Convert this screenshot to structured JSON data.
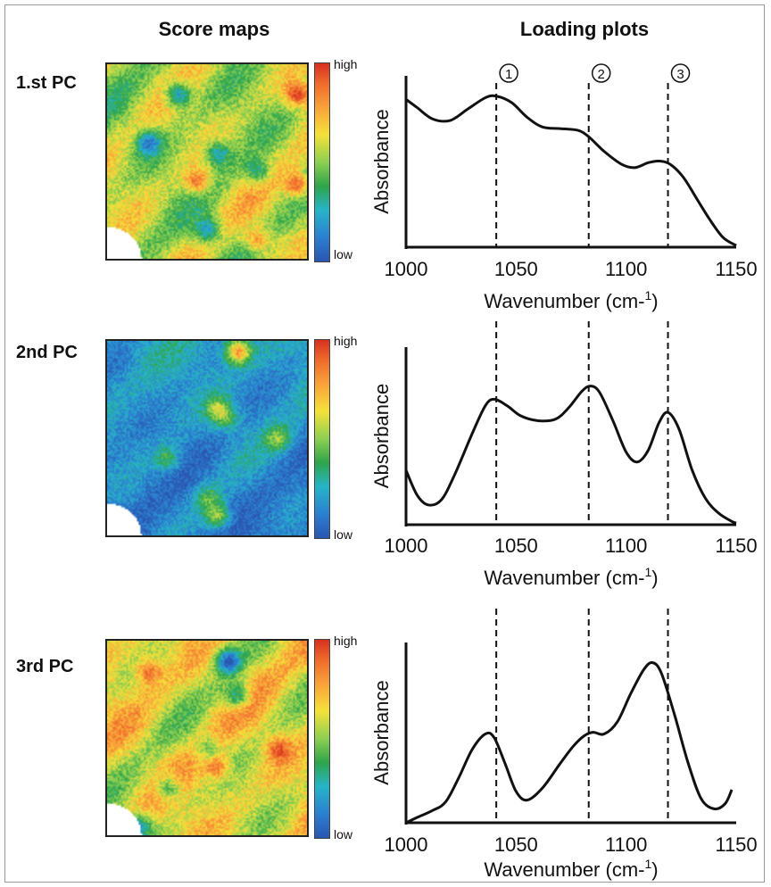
{
  "headers": {
    "score_maps": "Score maps",
    "loading_plots": "Loading plots"
  },
  "colorbar": {
    "high_label": "high",
    "low_label": "low"
  },
  "peak_markers": [
    {
      "number": "1",
      "symbol": "①",
      "wavenumber": 1041
    },
    {
      "number": "2",
      "symbol": "②",
      "wavenumber": 1083
    },
    {
      "number": "3",
      "symbol": "③",
      "wavenumber": 1119
    }
  ],
  "panels": [
    {
      "label": "1.st PC",
      "map_profile": "yellow-green with red streaks and blue spots"
    },
    {
      "label": "2nd PC",
      "map_profile": "predominantly blue with scattered yellow spots"
    },
    {
      "label": "3rd PC",
      "map_profile": "yellow-orange with green regions and blue spots"
    }
  ],
  "chart_data": [
    {
      "type": "line",
      "xlabel": "Wavenumber (cm-1)",
      "ylabel": "Absorbance",
      "xlim": [
        1000,
        1150
      ],
      "xticks": [
        1000,
        1050,
        1100,
        1150
      ],
      "y_tick_labels": false,
      "series": [
        {
          "points": [
            [
              1000,
              0.91
            ],
            [
              1005,
              0.86
            ],
            [
              1012,
              0.79
            ],
            [
              1020,
              0.78
            ],
            [
              1028,
              0.85
            ],
            [
              1036,
              0.92
            ],
            [
              1041,
              0.93
            ],
            [
              1048,
              0.89
            ],
            [
              1055,
              0.8
            ],
            [
              1062,
              0.74
            ],
            [
              1070,
              0.73
            ],
            [
              1078,
              0.72
            ],
            [
              1083,
              0.68
            ],
            [
              1090,
              0.59
            ],
            [
              1098,
              0.51
            ],
            [
              1104,
              0.49
            ],
            [
              1110,
              0.52
            ],
            [
              1115,
              0.53
            ],
            [
              1120,
              0.51
            ],
            [
              1126,
              0.43
            ],
            [
              1132,
              0.3
            ],
            [
              1138,
              0.17
            ],
            [
              1144,
              0.06
            ],
            [
              1150,
              0.01
            ]
          ]
        }
      ],
      "peak_lines": [
        1041,
        1083,
        1119
      ]
    },
    {
      "type": "line",
      "xlabel": "Wavenumber (cm-1)",
      "ylabel": "Absorbance",
      "xlim": [
        1000,
        1150
      ],
      "xticks": [
        1000,
        1050,
        1100,
        1150
      ],
      "y_tick_labels": false,
      "series": [
        {
          "points": [
            [
              1000,
              0.33
            ],
            [
              1005,
              0.18
            ],
            [
              1010,
              0.12
            ],
            [
              1016,
              0.15
            ],
            [
              1022,
              0.3
            ],
            [
              1030,
              0.55
            ],
            [
              1036,
              0.72
            ],
            [
              1040,
              0.76
            ],
            [
              1046,
              0.72
            ],
            [
              1052,
              0.66
            ],
            [
              1060,
              0.63
            ],
            [
              1068,
              0.64
            ],
            [
              1074,
              0.71
            ],
            [
              1080,
              0.81
            ],
            [
              1084,
              0.84
            ],
            [
              1088,
              0.8
            ],
            [
              1094,
              0.63
            ],
            [
              1100,
              0.44
            ],
            [
              1105,
              0.38
            ],
            [
              1110,
              0.45
            ],
            [
              1115,
              0.62
            ],
            [
              1119,
              0.68
            ],
            [
              1124,
              0.58
            ],
            [
              1130,
              0.33
            ],
            [
              1136,
              0.16
            ],
            [
              1142,
              0.07
            ],
            [
              1148,
              0.02
            ],
            [
              1150,
              0.01
            ]
          ]
        }
      ],
      "peak_lines": [
        1041,
        1083,
        1119
      ]
    },
    {
      "type": "line",
      "xlabel": "Wavenumber (cm-1)",
      "ylabel": "Absorbance",
      "xlim": [
        1000,
        1150
      ],
      "xticks": [
        1000,
        1050,
        1100,
        1150
      ],
      "y_tick_labels": false,
      "series": [
        {
          "points": [
            [
              1000,
              0.0
            ],
            [
              1005,
              0.03
            ],
            [
              1012,
              0.07
            ],
            [
              1018,
              0.12
            ],
            [
              1024,
              0.26
            ],
            [
              1030,
              0.42
            ],
            [
              1036,
              0.51
            ],
            [
              1040,
              0.49
            ],
            [
              1045,
              0.34
            ],
            [
              1050,
              0.18
            ],
            [
              1055,
              0.13
            ],
            [
              1062,
              0.2
            ],
            [
              1070,
              0.34
            ],
            [
              1076,
              0.44
            ],
            [
              1081,
              0.5
            ],
            [
              1085,
              0.52
            ],
            [
              1090,
              0.51
            ],
            [
              1096,
              0.58
            ],
            [
              1102,
              0.74
            ],
            [
              1108,
              0.88
            ],
            [
              1112,
              0.92
            ],
            [
              1116,
              0.86
            ],
            [
              1122,
              0.62
            ],
            [
              1128,
              0.35
            ],
            [
              1134,
              0.14
            ],
            [
              1140,
              0.08
            ],
            [
              1145,
              0.11
            ],
            [
              1148,
              0.19
            ]
          ]
        }
      ],
      "peak_lines": [
        1041,
        1083,
        1119
      ]
    }
  ]
}
